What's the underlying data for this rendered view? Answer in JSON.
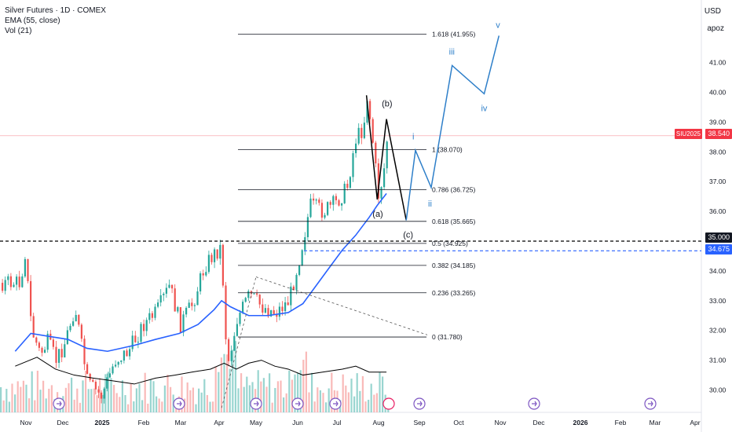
{
  "header": {
    "symbol_title": "Silver Futures · 1D · COMEX",
    "indicator_ema": "EMA (55, close)",
    "indicator_vol": "Vol (21)"
  },
  "price_axis": {
    "currency": "USD",
    "apoz_label": "apoz",
    "symbol_tag": "SIU2025",
    "current_price_label": "38.540",
    "level_35_label": "35.000",
    "level_blue_label": "34.675"
  },
  "colors": {
    "up": "#26a69a",
    "down": "#ef5350",
    "ema": "#2962ff",
    "wave_blue": "#2e7fc9",
    "black": "#000000",
    "price_line": "#f23645",
    "blue_dashed": "#2962ff"
  },
  "chart_data": {
    "type": "candlestick",
    "title": "Silver Futures · 1D · COMEX",
    "ylim": [
      29.5,
      42.5
    ],
    "y_ticks": [
      30.0,
      31.0,
      32.0,
      33.0,
      34.0,
      35.0,
      36.0,
      37.0,
      38.0,
      39.0,
      40.0,
      41.0
    ],
    "x_ticks": [
      "Nov",
      "Dec",
      "2025",
      "Feb",
      "Mar",
      "Apr",
      "May",
      "Jun",
      "Jul",
      "Aug",
      "Sep",
      "Oct",
      "Nov",
      "Dec",
      "2026",
      "Feb",
      "Mar",
      "Apr"
    ],
    "current_price": 38.54,
    "horizontal_levels": [
      {
        "label": "35.000",
        "value": 35.0,
        "style": "dashed-black"
      },
      {
        "label": "34.675",
        "value": 34.675,
        "style": "dashed-blue"
      }
    ],
    "fibonacci": [
      {
        "ratio": "1.618",
        "label": "1.618 (41.955)",
        "value": 41.955
      },
      {
        "ratio": "1",
        "label": "1 (38.070)",
        "value": 38.07
      },
      {
        "ratio": "0.786",
        "label": "0.786 (36.725)",
        "value": 36.725
      },
      {
        "ratio": "0.618",
        "label": "0.618 (35.665)",
        "value": 35.665
      },
      {
        "ratio": "0.5",
        "label": "0.5 (34.925)",
        "value": 34.925
      },
      {
        "ratio": "0.382",
        "label": "0.382 (34.185)",
        "value": 34.185
      },
      {
        "ratio": "0.236",
        "label": "0.236 (33.265)",
        "value": 33.265
      },
      {
        "ratio": "0",
        "label": "0 (31.780)",
        "value": 31.78
      }
    ],
    "abc_wave": {
      "labels": [
        "(a)",
        "(b)",
        "(c)"
      ],
      "points": [
        [
          "Jul 23",
          39.9
        ],
        [
          "Jul 31",
          36.4
        ],
        [
          "Aug 07",
          39.1
        ],
        [
          "Aug 22",
          35.7
        ]
      ]
    },
    "impulse_wave": {
      "labels": [
        "i",
        "ii",
        "iii",
        "iv",
        "v"
      ],
      "points": [
        [
          "Aug 22",
          35.7
        ],
        [
          "Aug 29",
          38.05
        ],
        [
          "Sep 10",
          36.8
        ],
        [
          "Sep 26",
          40.9
        ],
        [
          "Oct 20",
          39.95
        ],
        [
          "Oct 31",
          41.9
        ]
      ]
    },
    "triangle_lines": [
      {
        "from": [
          "Apr 03",
          29.4
        ],
        "to": [
          "May 01",
          33.8
        ]
      },
      {
        "from": [
          "May 01",
          33.8
        ],
        "to": [
          "Sep 07",
          31.85
        ]
      }
    ],
    "ohlc_path": [
      [
        "Oct 28",
        33.6
      ],
      [
        "Oct 30",
        35.0
      ],
      [
        "Nov 05",
        32.0
      ],
      [
        "Nov 12",
        31.2
      ],
      [
        "Nov 18",
        31.6
      ],
      [
        "Nov 25",
        31.0
      ],
      [
        "Dec 02",
        31.6
      ],
      [
        "Dec 10",
        32.8
      ],
      [
        "Dec 20",
        30.2
      ],
      [
        "Dec 31",
        29.8
      ],
      [
        "Jan 10",
        31.0
      ],
      [
        "Jan 20",
        31.3
      ],
      [
        "Jan 31",
        32.2
      ],
      [
        "Feb 10",
        32.6
      ],
      [
        "Feb 20",
        33.5
      ],
      [
        "Feb 28",
        32.2
      ],
      [
        "Mar 10",
        32.9
      ],
      [
        "Mar 20",
        34.2
      ],
      [
        "Mar 28",
        34.6
      ],
      [
        "Apr 02",
        34.8
      ],
      [
        "Apr 07",
        30.8
      ],
      [
        "Apr 15",
        32.4
      ],
      [
        "Apr 25",
        33.2
      ],
      [
        "May 05",
        32.8
      ],
      [
        "May 15",
        32.6
      ],
      [
        "May 25",
        33.0
      ],
      [
        "Jun 02",
        34.5
      ],
      [
        "Jun 10",
        36.2
      ],
      [
        "Jun 20",
        36.0
      ],
      [
        "Jun 30",
        36.3
      ],
      [
        "Jul 08",
        36.8
      ],
      [
        "Jul 14",
        38.4
      ],
      [
        "Jul 20",
        38.8
      ],
      [
        "Jul 23",
        39.9
      ],
      [
        "Jul 28",
        38.0
      ],
      [
        "Jul 31",
        36.5
      ],
      [
        "Aug 04",
        37.2
      ],
      [
        "Aug 07",
        38.5
      ]
    ],
    "ema_path": [
      [
        "Oct 24",
        31.3
      ],
      [
        "Nov 05",
        31.9
      ],
      [
        "Nov 20",
        31.8
      ],
      [
        "Dec 05",
        31.7
      ],
      [
        "Dec 20",
        31.4
      ],
      [
        "Jan 05",
        31.3
      ],
      [
        "Jan 25",
        31.5
      ],
      [
        "Feb 10",
        31.7
      ],
      [
        "Feb 28",
        31.9
      ],
      [
        "Mar 15",
        32.2
      ],
      [
        "Mar 28",
        32.7
      ],
      [
        "Apr 03",
        33.0
      ],
      [
        "Apr 10",
        32.8
      ],
      [
        "Apr 25",
        32.5
      ],
      [
        "May 10",
        32.5
      ],
      [
        "May 25",
        32.6
      ],
      [
        "Jun 05",
        32.9
      ],
      [
        "Jun 15",
        33.5
      ],
      [
        "Jun 25",
        34.1
      ],
      [
        "Jul 05",
        34.7
      ],
      [
        "Jul 15",
        35.2
      ],
      [
        "Jul 25",
        35.8
      ],
      [
        "Jul 31",
        36.2
      ],
      [
        "Aug 07",
        36.6
      ]
    ],
    "volume_ma_path": [
      [
        "Oct 24",
        30.8
      ],
      [
        "Nov 10",
        31.1
      ],
      [
        "Nov 25",
        30.7
      ],
      [
        "Dec 10",
        30.5
      ],
      [
        "Dec 25",
        30.4
      ],
      [
        "Jan 10",
        30.3
      ],
      [
        "Jan 25",
        30.2
      ],
      [
        "Feb 10",
        30.4
      ],
      [
        "Feb 25",
        30.5
      ],
      [
        "Mar 10",
        30.6
      ],
      [
        "Mar 25",
        30.7
      ],
      [
        "Apr 05",
        30.9
      ],
      [
        "Apr 15",
        30.7
      ],
      [
        "Apr 25",
        30.9
      ],
      [
        "May 05",
        31.0
      ],
      [
        "May 15",
        30.8
      ],
      [
        "May 25",
        30.7
      ],
      [
        "Jun 05",
        30.5
      ],
      [
        "Jun 20",
        30.6
      ],
      [
        "Jul 05",
        30.7
      ],
      [
        "Jul 15",
        30.8
      ],
      [
        "Jul 25",
        30.6
      ],
      [
        "Aug 07",
        30.6
      ]
    ]
  }
}
